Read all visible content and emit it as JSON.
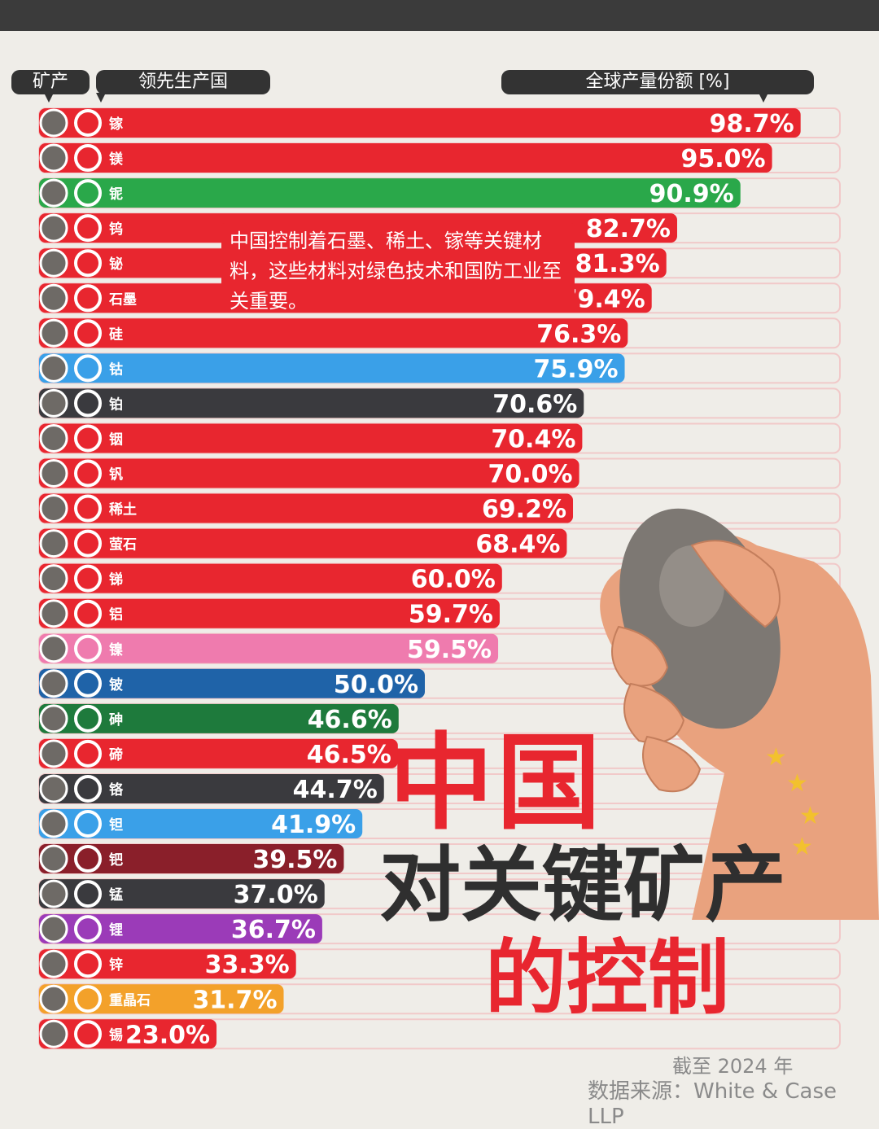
{
  "headers": {
    "mineral": "矿产",
    "country": "领先生产国",
    "share": "全球产量份额 [%]"
  },
  "annotation": "中国控制着石墨、稀土、镓等关键材料，这些材料对绿色技术和国防工业至关重要。",
  "headline": {
    "line1": "中国",
    "line2": "对关键矿产",
    "line3": "的控制"
  },
  "source": {
    "date": "截至 2024 年",
    "source": "数据来源：White & Case LLP"
  },
  "colors": {
    "china": "#e8262f",
    "brazil": "#2aa84a",
    "drc": "#3aa0e8",
    "south_africa": "#3a3a3e",
    "indonesia": "#ef7bae",
    "usa": "#1f63a8",
    "peru": "#1e7a3c",
    "russia": "#8a1f2a",
    "australia": "#9b3bb8",
    "india": "#f3a12a",
    "track": "#f1c9c9"
  },
  "chart_data": {
    "type": "bar",
    "orientation": "horizontal",
    "title": "",
    "xlabel": "全球产量份额 [%]",
    "ylabel": "矿产",
    "xlim": [
      0,
      100
    ],
    "categories": [
      "镓",
      "镁",
      "铌",
      "钨",
      "铋",
      "石墨",
      "硅",
      "钴",
      "铂",
      "铟",
      "钒",
      "稀土",
      "萤石",
      "锑",
      "铝",
      "镍",
      "铍",
      "砷",
      "碲",
      "铬",
      "钽",
      "钯",
      "锰",
      "锂",
      "锌",
      "重晶石",
      "锡"
    ],
    "values": [
      98.7,
      95.0,
      90.9,
      82.7,
      81.3,
      79.4,
      76.3,
      75.9,
      70.6,
      70.4,
      70.0,
      69.2,
      68.4,
      60.0,
      59.7,
      59.5,
      50.0,
      46.6,
      46.5,
      44.7,
      41.9,
      39.5,
      37.0,
      36.7,
      33.3,
      31.7,
      23.0
    ],
    "labels": [
      "98.7%",
      "95.0%",
      "90.9%",
      "82.7%",
      "81.3%",
      "79.4%",
      "76.3%",
      "75.9%",
      "70.6%",
      "70.4%",
      "70.0%",
      "69.2%",
      "68.4%",
      "60.0%",
      "59.7%",
      "59.5%",
      "50.0%",
      "46.6%",
      "46.5%",
      "44.7%",
      "41.9%",
      "39.5%",
      "37.0%",
      "36.7%",
      "33.3%",
      "31.7%",
      "23.0%"
    ],
    "countries": [
      "china",
      "china",
      "brazil",
      "china",
      "china",
      "china",
      "china",
      "drc",
      "south_africa",
      "china",
      "china",
      "china",
      "china",
      "china",
      "china",
      "indonesia",
      "usa",
      "peru",
      "china",
      "south_africa",
      "drc",
      "russia",
      "south_africa",
      "australia",
      "china",
      "india",
      "china"
    ],
    "legend": "none",
    "grid": false
  }
}
